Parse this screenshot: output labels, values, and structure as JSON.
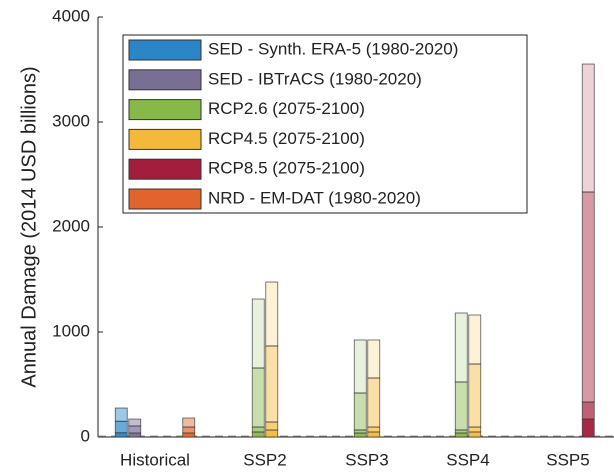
{
  "chart_data": {
    "type": "bar",
    "ylabel": "Annual Damage (2014 USD billions)",
    "categories": [
      "Historical",
      "SSP2",
      "SSP3",
      "SSP4",
      "SSP5"
    ],
    "ylim": [
      0,
      4000
    ],
    "yticks": [
      0,
      1000,
      2000,
      3000,
      4000
    ],
    "series": [
      {
        "name": "SED - Synth. ERA-5 (1980-2020)",
        "color": "#2b86c8",
        "values": [
          [
            40,
            110,
            126
          ],
          null,
          null,
          null,
          null
        ]
      },
      {
        "name": "SED - IBTrACS (1980-2020)",
        "color": "#7a6e95",
        "values": [
          [
            38,
            67,
            66
          ],
          null,
          null,
          null,
          null
        ]
      },
      {
        "name": "RCP2.6 (2075-2100)",
        "color": "#86b84a",
        "values": [
          null,
          [
            48,
            47,
            562,
            657
          ],
          [
            38,
            29,
            352,
            505
          ],
          [
            38,
            29,
            457,
            657
          ],
          null
        ]
      },
      {
        "name": "RCP4.5 (2075-2100)",
        "color": "#f4b93a",
        "values": [
          null,
          [
            67,
            76,
            724,
            609
          ],
          [
            48,
            47,
            467,
            362
          ],
          [
            48,
            47,
            600,
            467
          ],
          null
        ]
      },
      {
        "name": "RCP8.5 (2075-2100)",
        "color": "#a31e3c",
        "values": [
          null,
          null,
          null,
          null,
          [
            171,
            162,
            2000,
            1219
          ]
        ]
      },
      {
        "name": "NRD - EM-DAT (1980-2020)",
        "color": "#e0642c",
        "values": [
          [
            38,
            57,
            86
          ],
          null,
          null,
          null,
          null
        ]
      }
    ]
  }
}
